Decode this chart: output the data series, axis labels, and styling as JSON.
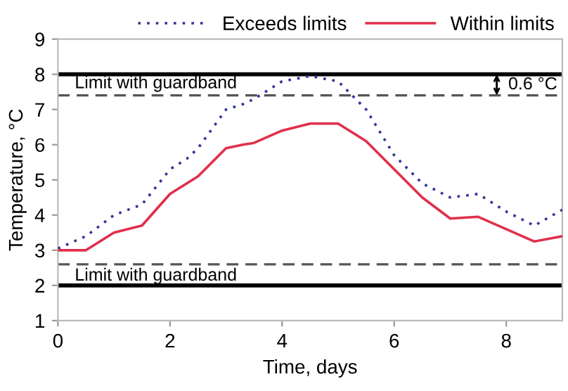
{
  "chart_data": {
    "type": "line",
    "xlabel": "Time, days",
    "ylabel": "Temperature, °C",
    "x": [
      0,
      0.5,
      1,
      1.5,
      2,
      2.3,
      2.5,
      3,
      3.3,
      3.5,
      4,
      4.5,
      5,
      5.5,
      6,
      6.5,
      7,
      7.5,
      8,
      8.5,
      9
    ],
    "series": [
      {
        "name": "Exceeds limits",
        "color": "#33339a",
        "line_style": "dotted",
        "values": [
          3.05,
          3.4,
          4.0,
          4.3,
          5.3,
          5.6,
          5.9,
          7.0,
          7.15,
          7.3,
          7.8,
          7.95,
          7.8,
          7.0,
          5.7,
          4.9,
          4.5,
          4.6,
          4.1,
          3.7,
          4.15
        ]
      },
      {
        "name": "Within limits",
        "color": "#e0304a",
        "line_style": "solid",
        "values": [
          3.0,
          3.0,
          3.5,
          3.7,
          4.6,
          4.9,
          5.1,
          5.9,
          6.0,
          6.05,
          6.4,
          6.6,
          6.6,
          6.1,
          5.3,
          4.5,
          3.9,
          3.95,
          3.6,
          3.25,
          3.4
        ]
      }
    ],
    "xlim": [
      0,
      9
    ],
    "ylim": [
      1,
      9
    ],
    "xticks": [
      0,
      2,
      4,
      6,
      8
    ],
    "yticks": [
      1,
      2,
      3,
      4,
      5,
      6,
      7,
      8,
      9
    ],
    "ref_lines": [
      {
        "axis": "y",
        "value": 8,
        "color": "#000000",
        "line_style": "solid"
      },
      {
        "axis": "y",
        "value": 7.4,
        "label": "Limit with guardband",
        "color": "#555555",
        "line_style": "dashed"
      },
      {
        "axis": "y",
        "value": 2.6,
        "label": "Limit with guardband",
        "color": "#555555",
        "line_style": "dashed"
      },
      {
        "axis": "y",
        "value": 2,
        "color": "#000000",
        "line_style": "solid"
      }
    ],
    "annotations": [
      "0.6 °C"
    ],
    "legend": "top right",
    "grid": false,
    "marker": "none"
  }
}
